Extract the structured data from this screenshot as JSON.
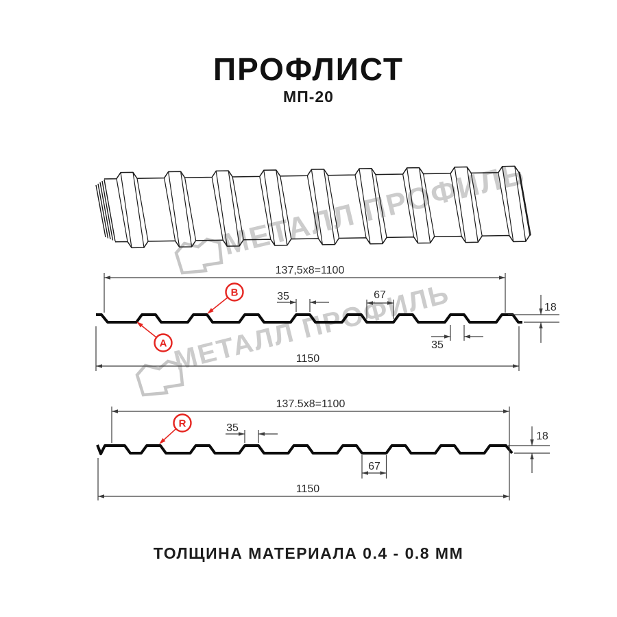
{
  "header": {
    "title": "ПРОФЛИСТ",
    "subtitle": "МП-20"
  },
  "footer": {
    "material_note": "ТОЛЩИНА МАТЕРИАЛА 0.4 - 0.8 ММ"
  },
  "watermark": {
    "brand": "МЕТАЛЛ ПРОФИЛЬ"
  },
  "colors": {
    "profile_line": "#0b0b0b",
    "dim_line": "#3d3d3d",
    "dim_text": "#2d2d2d",
    "accent_red": "#e52520",
    "watermark_gray": "#cccccc",
    "sheet_line": "#1c1c1c"
  },
  "diagrams": [
    {
      "name": "section-side-A",
      "dim_module": "137,5x8=1100",
      "dim_total_width": "1150",
      "dim_rib_top": "35",
      "dim_valley": "67",
      "dim_height": "18",
      "dim_rib_bottom": "35",
      "labels": [
        "A",
        "B"
      ]
    },
    {
      "name": "section-side-R",
      "dim_module": "137.5x8=1100",
      "dim_total_width": "1150",
      "dim_rib_top": "35",
      "dim_valley": "67",
      "dim_height": "18",
      "labels": [
        "R"
      ]
    }
  ]
}
